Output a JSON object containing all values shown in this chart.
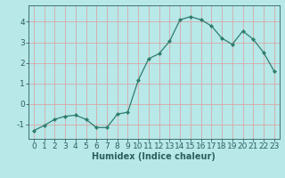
{
  "x": [
    0,
    1,
    2,
    3,
    4,
    5,
    6,
    7,
    8,
    9,
    10,
    11,
    12,
    13,
    14,
    15,
    16,
    17,
    18,
    19,
    20,
    21,
    22,
    23
  ],
  "y": [
    -1.3,
    -1.05,
    -0.75,
    -0.6,
    -0.55,
    -0.75,
    -1.15,
    -1.15,
    -0.5,
    -0.4,
    1.15,
    2.2,
    2.45,
    3.05,
    4.1,
    4.25,
    4.1,
    3.8,
    3.2,
    2.9,
    3.55,
    3.15,
    2.5,
    1.6
  ],
  "line_color": "#2e7d6e",
  "marker": "D",
  "marker_size": 2.0,
  "bg_color": "#b8e8e8",
  "grid_color": "#d8a8a8",
  "axes_color": "#2e6060",
  "xlabel": "Humidex (Indice chaleur)",
  "xlabel_fontsize": 7,
  "xlim": [
    -0.5,
    23.5
  ],
  "ylim": [
    -1.7,
    4.8
  ],
  "yticks": [
    -1,
    0,
    1,
    2,
    3,
    4
  ],
  "xticks": [
    0,
    1,
    2,
    3,
    4,
    5,
    6,
    7,
    8,
    9,
    10,
    11,
    12,
    13,
    14,
    15,
    16,
    17,
    18,
    19,
    20,
    21,
    22,
    23
  ],
  "tick_fontsize": 6.5
}
